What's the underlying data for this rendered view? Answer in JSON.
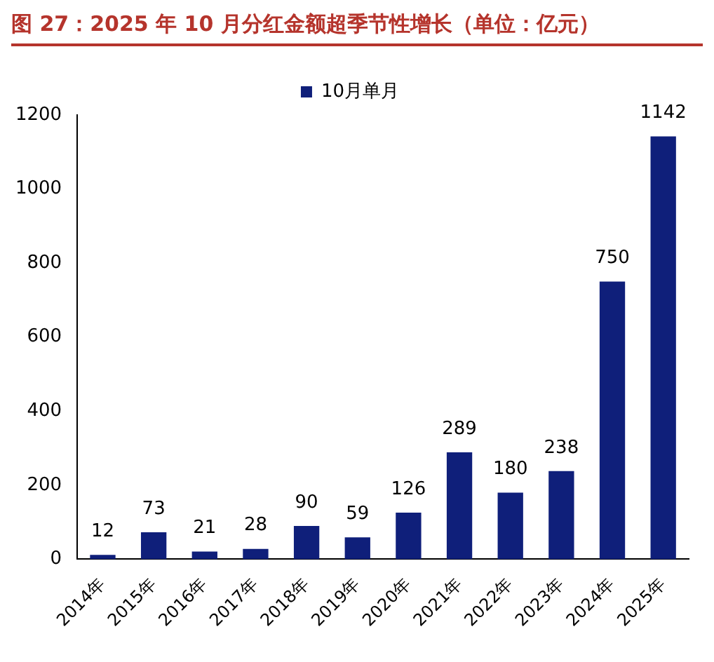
{
  "chart_data": {
    "type": "bar",
    "title": "图 27：2025 年 10 月分红金额超季节性增长（单位：亿元）",
    "categories": [
      "2014年",
      "2015年",
      "2016年",
      "2017年",
      "2018年",
      "2019年",
      "2020年",
      "2021年",
      "2022年",
      "2023年",
      "2024年",
      "2025年"
    ],
    "series": [
      {
        "name": "10月单月",
        "color": "#0f1f7a",
        "values": [
          12,
          73,
          21,
          28,
          90,
          59,
          126,
          289,
          180,
          238,
          750,
          1142
        ]
      }
    ],
    "ylim": [
      0,
      1200
    ],
    "yticks": [
      0,
      200,
      400,
      600,
      800,
      1000,
      1200
    ],
    "grid": false,
    "legend": "top",
    "data_labels": true
  }
}
